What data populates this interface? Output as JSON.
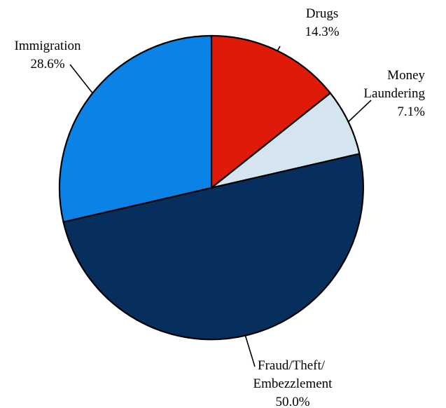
{
  "chart_data": {
    "type": "pie",
    "title": "",
    "start_angle_deg": 0,
    "direction": "clockwise",
    "slices": [
      {
        "key": "drugs",
        "label_lines": [
          "Drugs"
        ],
        "percent_label": "14.3%",
        "value": 14.3,
        "color": "#e01a08"
      },
      {
        "key": "money-laundering",
        "label_lines": [
          "Money",
          "Laundering"
        ],
        "percent_label": "7.1%",
        "value": 7.1,
        "color": "#d5e5f0"
      },
      {
        "key": "fraud-theft-embezzlement",
        "label_lines": [
          "Fraud/Theft/",
          "Embezzlement"
        ],
        "percent_label": "50.0%",
        "value": 50.0,
        "color": "#062f5e"
      },
      {
        "key": "immigration",
        "label_lines": [
          "Immigration"
        ],
        "percent_label": "28.6%",
        "value": 28.6,
        "color": "#0a82e6"
      }
    ]
  }
}
